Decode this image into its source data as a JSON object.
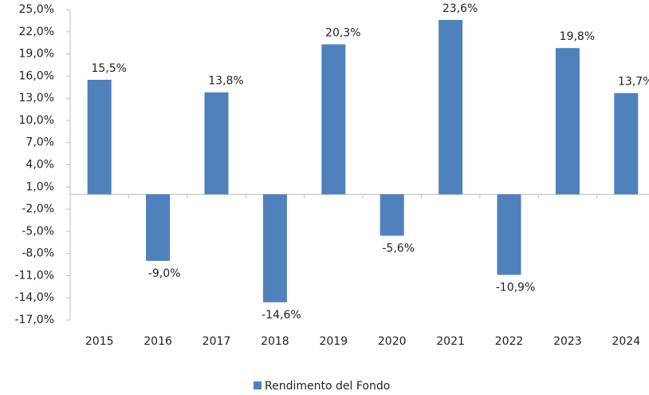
{
  "chart_data": {
    "type": "bar",
    "categories": [
      "2015",
      "2016",
      "2017",
      "2018",
      "2019",
      "2020",
      "2021",
      "2022",
      "2023",
      "2024"
    ],
    "series": [
      {
        "name": "Rendimento del Fondo",
        "color": "#4f81bd",
        "values": [
          15.5,
          -9.0,
          13.8,
          -14.6,
          20.3,
          -5.6,
          23.6,
          -10.9,
          19.8,
          13.7
        ],
        "value_labels": [
          "15,5%",
          "-9,0%",
          "13,8%",
          "-14,6%",
          "20,3%",
          "-5,6%",
          "23,6%",
          "-10,9%",
          "19,8%",
          "13,7%"
        ]
      }
    ],
    "ylim": [
      -17,
      25
    ],
    "yticks": [
      {
        "value": 25,
        "label": "25,0%"
      },
      {
        "value": 22,
        "label": "22,0%"
      },
      {
        "value": 19,
        "label": "19,0%"
      },
      {
        "value": 16,
        "label": "16,0%"
      },
      {
        "value": 13,
        "label": "13,0%"
      },
      {
        "value": 10,
        "label": "10,0%"
      },
      {
        "value": 7,
        "label": "7,0%"
      },
      {
        "value": 4,
        "label": "4,0%"
      },
      {
        "value": 1,
        "label": "1,0%"
      },
      {
        "value": -2,
        "label": "-2,0%"
      },
      {
        "value": -5,
        "label": "-5,0%"
      },
      {
        "value": -8,
        "label": "-8,0%"
      },
      {
        "value": -11,
        "label": "-11,0%"
      },
      {
        "value": -14,
        "label": "-14,0%"
      },
      {
        "value": -17,
        "label": "-17,0%"
      }
    ],
    "grid": false,
    "legend": "bottom"
  }
}
